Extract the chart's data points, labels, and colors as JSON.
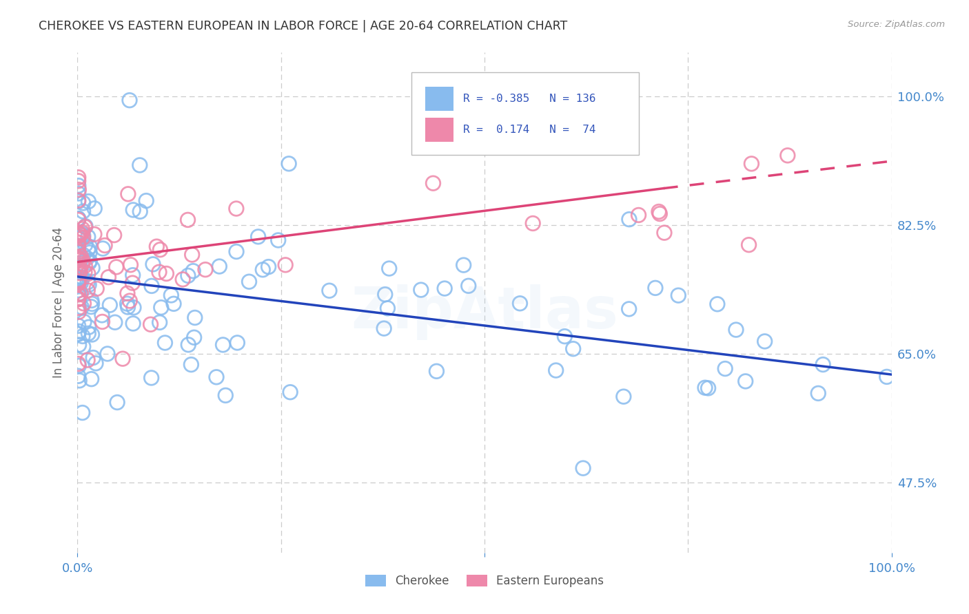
{
  "title": "CHEROKEE VS EASTERN EUROPEAN IN LABOR FORCE | AGE 20-64 CORRELATION CHART",
  "source": "Source: ZipAtlas.com",
  "ylabel": "In Labor Force | Age 20-64",
  "yticks": [
    47.5,
    65.0,
    82.5,
    100.0
  ],
  "ytick_labels": [
    "47.5%",
    "65.0%",
    "82.5%",
    "100.0%"
  ],
  "legend_labels_bottom": [
    "Cherokee",
    "Eastern Europeans"
  ],
  "blue_color": "#88BBEE",
  "pink_color": "#EE88AA",
  "blue_line_color": "#2244BB",
  "pink_line_color": "#DD4477",
  "background_color": "#FFFFFF",
  "grid_color": "#CCCCCC",
  "title_color": "#333333",
  "axis_tick_color": "#4488CC",
  "legend_text_color": "#3355BB",
  "xlim": [
    0.0,
    1.0
  ],
  "ylim": [
    0.38,
    1.06
  ],
  "r_cherokee": -0.385,
  "n_cherokee": 136,
  "r_eastern": 0.174,
  "n_eastern": 74,
  "blue_line_x0": 0.0,
  "blue_line_y0": 0.755,
  "blue_line_x1": 1.0,
  "blue_line_y1": 0.622,
  "pink_line_x0": 0.0,
  "pink_line_y0": 0.775,
  "pink_line_x1": 0.72,
  "pink_line_y1": 0.875,
  "pink_line_dash_x1": 1.0,
  "pink_line_dash_y1": 0.912
}
